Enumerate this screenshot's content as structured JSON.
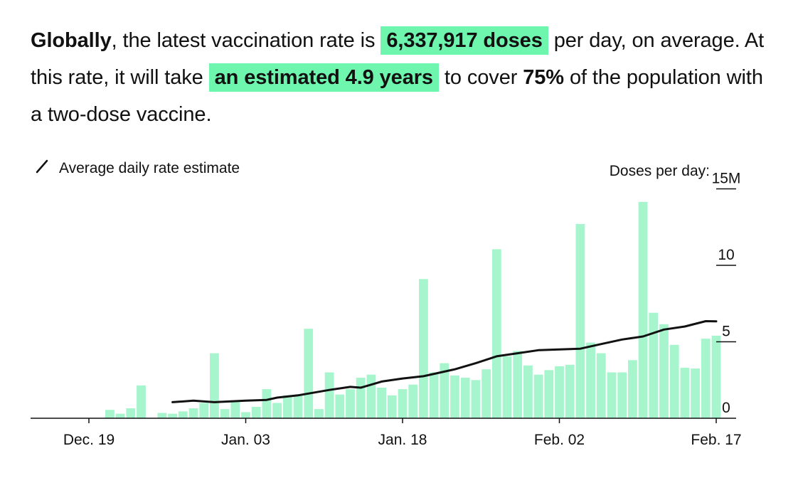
{
  "headline": {
    "t1": "Globally",
    "t2": ", the latest vaccination rate is ",
    "rate": "6,337,917 doses",
    "t3": " per day, on average. At this rate, it will take ",
    "estimate": "an estimated 4.9 years",
    "t4": " to cover ",
    "coverage": "75%",
    "t5": " of the population with a two-dose vaccine."
  },
  "colors": {
    "bar": "#a7f5cc",
    "line": "#111111",
    "highlight": "#6ef5ae"
  },
  "chart_data": {
    "type": "bar",
    "legend": {
      "label": "Average daily rate estimate",
      "position": "top-left"
    },
    "ylabel_prefix": "Doses per day:",
    "y_unit": "M",
    "ylim": [
      0,
      15
    ],
    "yticks": [
      {
        "value": 0,
        "label": "0"
      },
      {
        "value": 5,
        "label": "5"
      },
      {
        "value": 10,
        "label": "10"
      },
      {
        "value": 15,
        "label": "15M"
      }
    ],
    "xticks": [
      {
        "date": "2020-12-19",
        "label": "Dec. 19"
      },
      {
        "date": "2021-01-03",
        "label": "Jan. 03"
      },
      {
        "date": "2021-01-18",
        "label": "Jan. 18"
      },
      {
        "date": "2021-02-02",
        "label": "Feb. 02"
      },
      {
        "date": "2021-02-17",
        "label": "Feb. 17"
      }
    ],
    "x_start": "2020-12-13",
    "bar_dates": [
      "2020-12-19",
      "2020-12-20",
      "2020-12-21",
      "2020-12-22",
      "2020-12-23",
      "2020-12-24",
      "2020-12-25",
      "2020-12-26",
      "2020-12-27",
      "2020-12-28",
      "2020-12-29",
      "2020-12-30",
      "2020-12-31",
      "2021-01-01",
      "2021-01-02",
      "2021-01-03",
      "2021-01-04",
      "2021-01-05",
      "2021-01-06",
      "2021-01-07",
      "2021-01-08",
      "2021-01-09",
      "2021-01-10",
      "2021-01-11",
      "2021-01-12",
      "2021-01-13",
      "2021-01-14",
      "2021-01-15",
      "2021-01-16",
      "2021-01-17",
      "2021-01-18",
      "2021-01-19",
      "2021-01-20",
      "2021-01-21",
      "2021-01-22",
      "2021-01-23",
      "2021-01-24",
      "2021-01-25",
      "2021-01-26",
      "2021-01-27",
      "2021-01-28",
      "2021-01-29",
      "2021-01-30",
      "2021-01-31",
      "2021-02-01",
      "2021-02-02",
      "2021-02-03",
      "2021-02-04",
      "2021-02-05",
      "2021-02-06",
      "2021-02-07",
      "2021-02-08",
      "2021-02-09",
      "2021-02-10",
      "2021-02-11",
      "2021-02-12",
      "2021-02-13",
      "2021-02-14",
      "2021-02-15",
      "2021-02-16",
      "2021-02-17"
    ],
    "series": [
      {
        "kind": "bar",
        "values": [
          0.0,
          0.0,
          0.55,
          0.3,
          0.65,
          2.15,
          0.0,
          0.35,
          0.3,
          0.45,
          0.65,
          1.0,
          4.25,
          0.6,
          1.1,
          0.4,
          0.75,
          1.9,
          1.0,
          1.5,
          1.5,
          5.85,
          0.6,
          3.0,
          1.55,
          1.9,
          2.65,
          2.85,
          2.0,
          1.5,
          1.9,
          2.2,
          9.1,
          3.0,
          3.6,
          2.8,
          2.65,
          2.5,
          3.2,
          11.05,
          4.05,
          4.4,
          3.45,
          2.85,
          3.15,
          3.4,
          3.5,
          12.7,
          4.95,
          4.25,
          3.0,
          3.0,
          3.8,
          14.15,
          6.9,
          6.15,
          4.8,
          3.3,
          3.25,
          5.2,
          5.4
        ]
      },
      {
        "kind": "line",
        "points": [
          {
            "date": "2020-12-27",
            "value": 1.05
          },
          {
            "date": "2020-12-29",
            "value": 1.15
          },
          {
            "date": "2020-12-31",
            "value": 1.05
          },
          {
            "date": "2021-01-03",
            "value": 1.15
          },
          {
            "date": "2021-01-05",
            "value": 1.2
          },
          {
            "date": "2021-01-06",
            "value": 1.35
          },
          {
            "date": "2021-01-08",
            "value": 1.5
          },
          {
            "date": "2021-01-11",
            "value": 1.85
          },
          {
            "date": "2021-01-13",
            "value": 2.05
          },
          {
            "date": "2021-01-14",
            "value": 2.0
          },
          {
            "date": "2021-01-16",
            "value": 2.4
          },
          {
            "date": "2021-01-18",
            "value": 2.6
          },
          {
            "date": "2021-01-20",
            "value": 2.75
          },
          {
            "date": "2021-01-23",
            "value": 3.2
          },
          {
            "date": "2021-01-25",
            "value": 3.6
          },
          {
            "date": "2021-01-27",
            "value": 4.05
          },
          {
            "date": "2021-01-29",
            "value": 4.25
          },
          {
            "date": "2021-01-31",
            "value": 4.45
          },
          {
            "date": "2021-02-02",
            "value": 4.5
          },
          {
            "date": "2021-02-04",
            "value": 4.55
          },
          {
            "date": "2021-02-06",
            "value": 4.85
          },
          {
            "date": "2021-02-08",
            "value": 5.15
          },
          {
            "date": "2021-02-10",
            "value": 5.35
          },
          {
            "date": "2021-02-12",
            "value": 5.8
          },
          {
            "date": "2021-02-14",
            "value": 6.0
          },
          {
            "date": "2021-02-16",
            "value": 6.35
          },
          {
            "date": "2021-02-17",
            "value": 6.34
          }
        ]
      }
    ]
  }
}
